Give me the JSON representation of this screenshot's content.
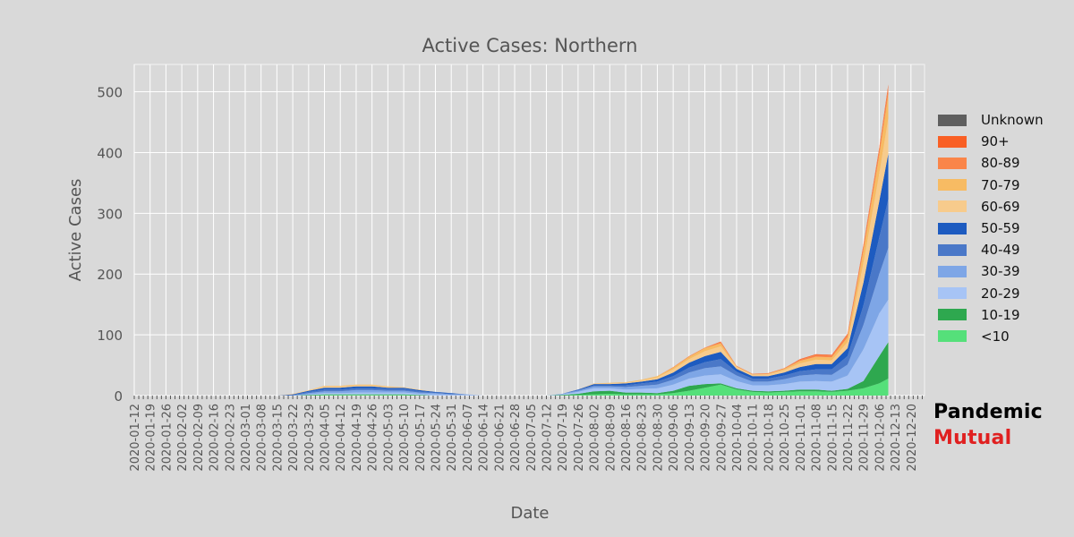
{
  "chart_data": {
    "type": "area",
    "stacked": true,
    "title": "Active Cases: Northern",
    "xlabel": "Date",
    "ylabel": "Active Cases",
    "ylim": [
      0,
      545
    ],
    "yticks": [
      0,
      100,
      200,
      300,
      400,
      500
    ],
    "x_range": [
      "2020-01-12",
      "2020-12-26"
    ],
    "x_ticks": [
      "2020-01-12",
      "2020-01-19",
      "2020-01-26",
      "2020-02-02",
      "2020-02-09",
      "2020-02-16",
      "2020-02-23",
      "2020-03-01",
      "2020-03-08",
      "2020-03-15",
      "2020-03-22",
      "2020-03-29",
      "2020-04-05",
      "2020-04-12",
      "2020-04-19",
      "2020-04-26",
      "2020-05-03",
      "2020-05-10",
      "2020-05-17",
      "2020-05-24",
      "2020-05-31",
      "2020-06-07",
      "2020-06-14",
      "2020-06-21",
      "2020-06-28",
      "2020-07-05",
      "2020-07-12",
      "2020-07-19",
      "2020-07-26",
      "2020-08-02",
      "2020-08-09",
      "2020-08-16",
      "2020-08-23",
      "2020-08-30",
      "2020-09-06",
      "2020-09-13",
      "2020-09-20",
      "2020-09-27",
      "2020-10-04",
      "2020-10-11",
      "2020-10-18",
      "2020-10-25",
      "2020-11-01",
      "2020-11-08",
      "2020-11-15",
      "2020-11-22",
      "2020-11-29",
      "2020-12-06",
      "2020-12-13",
      "2020-12-20"
    ],
    "grid": true,
    "legend_position": "right",
    "x": [
      "2020-03-08",
      "2020-03-15",
      "2020-03-22",
      "2020-03-29",
      "2020-04-05",
      "2020-04-12",
      "2020-04-19",
      "2020-04-26",
      "2020-05-03",
      "2020-05-10",
      "2020-05-17",
      "2020-05-24",
      "2020-05-31",
      "2020-06-07",
      "2020-06-14",
      "2020-06-21",
      "2020-06-28",
      "2020-07-05",
      "2020-07-12",
      "2020-07-19",
      "2020-07-26",
      "2020-08-02",
      "2020-08-09",
      "2020-08-16",
      "2020-08-23",
      "2020-08-30",
      "2020-09-06",
      "2020-09-13",
      "2020-09-20",
      "2020-09-27",
      "2020-10-04",
      "2020-10-11",
      "2020-10-18",
      "2020-10-25",
      "2020-11-01",
      "2020-11-08",
      "2020-11-15",
      "2020-11-22",
      "2020-11-29",
      "2020-12-06",
      "2020-12-10"
    ],
    "series": [
      {
        "name": "<10",
        "color": "#55e07a",
        "values": [
          0,
          0,
          0,
          0,
          1,
          1,
          1,
          1,
          1,
          1,
          0,
          0,
          0,
          0,
          0,
          0,
          0,
          0,
          0,
          0,
          1,
          2,
          3,
          2,
          2,
          2,
          4,
          8,
          13,
          18,
          10,
          6,
          5,
          6,
          7,
          7,
          6,
          8,
          12,
          20,
          28
        ]
      },
      {
        "name": "10-19",
        "color": "#2ea84f",
        "values": [
          0,
          0,
          0,
          1,
          1,
          1,
          1,
          1,
          1,
          1,
          1,
          0,
          0,
          0,
          0,
          0,
          0,
          0,
          0,
          1,
          2,
          5,
          5,
          3,
          3,
          2,
          4,
          8,
          6,
          2,
          2,
          2,
          2,
          2,
          3,
          3,
          2,
          3,
          12,
          45,
          60
        ]
      },
      {
        "name": "20-29",
        "color": "#a7c4f5",
        "values": [
          0,
          0,
          0,
          1,
          2,
          2,
          3,
          3,
          3,
          3,
          2,
          2,
          1,
          1,
          0,
          0,
          0,
          0,
          0,
          1,
          3,
          5,
          4,
          5,
          6,
          8,
          10,
          12,
          14,
          15,
          12,
          9,
          10,
          11,
          13,
          14,
          15,
          22,
          52,
          70,
          70
        ]
      },
      {
        "name": "30-39",
        "color": "#7ea6e6",
        "values": [
          0,
          0,
          0,
          2,
          3,
          3,
          4,
          4,
          3,
          3,
          2,
          2,
          1,
          1,
          0,
          0,
          0,
          0,
          0,
          1,
          2,
          3,
          3,
          4,
          5,
          6,
          8,
          10,
          12,
          13,
          9,
          6,
          6,
          8,
          10,
          11,
          11,
          18,
          40,
          65,
          85
        ]
      },
      {
        "name": "40-49",
        "color": "#4a78c8",
        "values": [
          0,
          0,
          1,
          2,
          3,
          3,
          3,
          3,
          3,
          3,
          2,
          1,
          1,
          0,
          0,
          0,
          0,
          0,
          0,
          0,
          1,
          2,
          2,
          3,
          4,
          5,
          6,
          8,
          10,
          12,
          6,
          5,
          5,
          6,
          7,
          8,
          9,
          14,
          32,
          60,
          80
        ]
      },
      {
        "name": "50-59",
        "color": "#1d5bc0",
        "values": [
          0,
          0,
          1,
          2,
          3,
          3,
          3,
          3,
          2,
          2,
          2,
          1,
          1,
          0,
          0,
          0,
          0,
          0,
          0,
          0,
          1,
          2,
          2,
          3,
          3,
          4,
          6,
          8,
          10,
          12,
          5,
          4,
          4,
          5,
          7,
          9,
          9,
          13,
          38,
          60,
          75
        ]
      },
      {
        "name": "60-69",
        "color": "#f7cb8c",
        "values": [
          0,
          0,
          1,
          1,
          2,
          2,
          2,
          2,
          1,
          1,
          1,
          0,
          0,
          0,
          0,
          0,
          0,
          0,
          0,
          0,
          0,
          1,
          1,
          1,
          2,
          3,
          5,
          6,
          8,
          9,
          3,
          2,
          3,
          4,
          6,
          7,
          6,
          10,
          32,
          45,
          58
        ]
      },
      {
        "name": "70-79",
        "color": "#f7bb63",
        "values": [
          0,
          0,
          0,
          0,
          1,
          1,
          1,
          1,
          1,
          0,
          0,
          0,
          0,
          0,
          0,
          0,
          0,
          0,
          0,
          0,
          0,
          0,
          1,
          1,
          1,
          2,
          3,
          4,
          5,
          5,
          1,
          1,
          1,
          2,
          4,
          5,
          5,
          8,
          20,
          30,
          40
        ]
      },
      {
        "name": "80-89",
        "color": "#fa8549",
        "values": [
          0,
          0,
          0,
          0,
          0,
          0,
          0,
          0,
          0,
          0,
          0,
          0,
          0,
          0,
          0,
          0,
          0,
          0,
          0,
          0,
          0,
          0,
          0,
          0,
          0,
          0,
          1,
          1,
          1,
          2,
          1,
          1,
          1,
          1,
          2,
          3,
          3,
          5,
          8,
          10,
          12
        ]
      },
      {
        "name": "90+",
        "color": "#f95f24",
        "values": [
          0,
          0,
          0,
          0,
          0,
          0,
          0,
          0,
          0,
          0,
          0,
          0,
          0,
          0,
          0,
          0,
          0,
          0,
          0,
          0,
          0,
          0,
          0,
          0,
          0,
          0,
          0,
          0,
          0,
          1,
          0,
          0,
          0,
          0,
          1,
          1,
          1,
          1,
          2,
          3,
          4
        ]
      },
      {
        "name": "Unknown",
        "color": "#5f5f5f",
        "values": [
          0,
          0,
          0,
          0,
          0,
          0,
          0,
          0,
          0,
          0,
          0,
          0,
          0,
          0,
          0,
          0,
          0,
          0,
          0,
          0,
          0,
          0,
          0,
          0,
          0,
          0,
          0,
          0,
          0,
          0,
          0,
          0,
          0,
          0,
          0,
          0,
          0,
          0,
          0,
          0,
          0
        ]
      }
    ],
    "legend_order": [
      "Unknown",
      "90+",
      "80-89",
      "70-79",
      "60-69",
      "50-59",
      "40-49",
      "30-39",
      "20-29",
      "10-19",
      "<10"
    ]
  },
  "branding": {
    "line1": "Pandemic",
    "line2": "Mutual",
    "line1_color": "#000000",
    "line2_color": "#e02020"
  }
}
